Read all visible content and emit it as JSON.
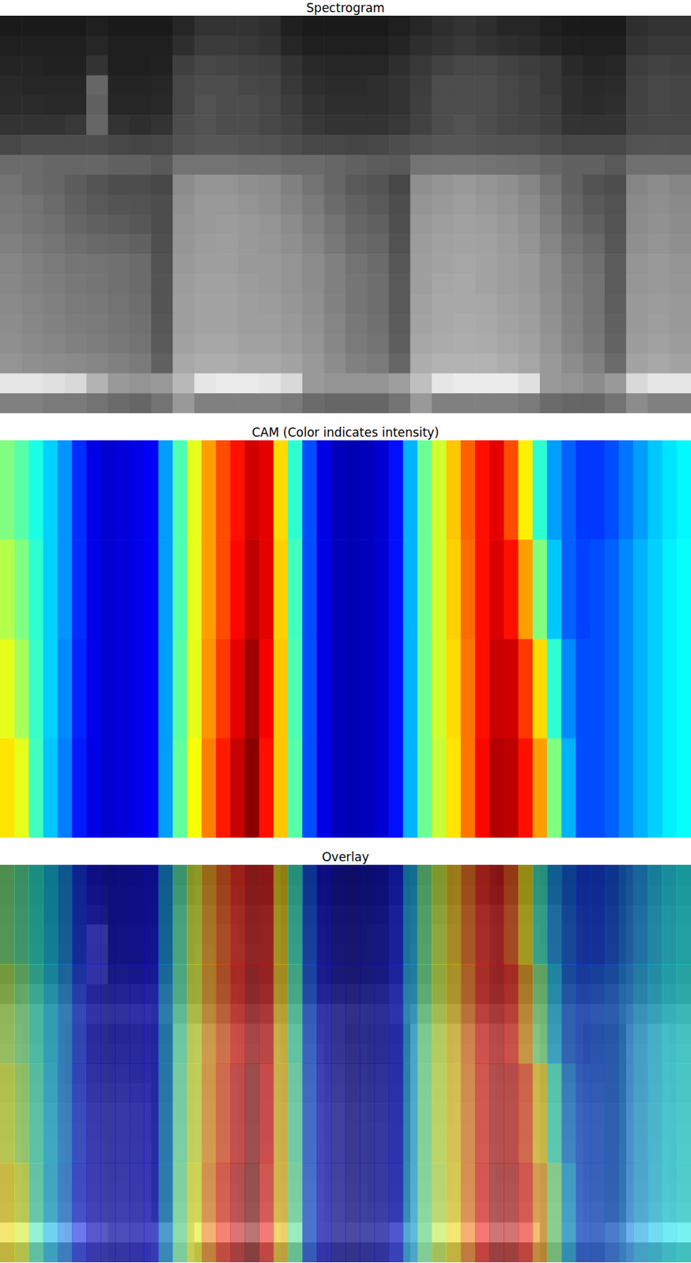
{
  "chart_data": [
    {
      "type": "heatmap",
      "title": "Spectrogram",
      "color": "gray",
      "clim": [
        0,
        1
      ],
      "tick_labels": false,
      "cells": [
        [
          0.1,
          0.1,
          0.1,
          0.1,
          0.12,
          0.1,
          0.1,
          0.1,
          0.15,
          0.2,
          0.2,
          0.2,
          0.18,
          0.12,
          0.1,
          0.1,
          0.1,
          0.1,
          0.12,
          0.15,
          0.18,
          0.2,
          0.18,
          0.15,
          0.15,
          0.12,
          0.1,
          0.1,
          0.1,
          0.18,
          0.2,
          0.2
        ],
        [
          0.12,
          0.12,
          0.12,
          0.12,
          0.15,
          0.12,
          0.12,
          0.12,
          0.18,
          0.23,
          0.23,
          0.22,
          0.2,
          0.15,
          0.12,
          0.12,
          0.12,
          0.12,
          0.14,
          0.18,
          0.2,
          0.22,
          0.2,
          0.18,
          0.17,
          0.14,
          0.12,
          0.12,
          0.12,
          0.2,
          0.22,
          0.22
        ],
        [
          0.14,
          0.14,
          0.13,
          0.13,
          0.2,
          0.12,
          0.12,
          0.13,
          0.25,
          0.28,
          0.27,
          0.26,
          0.25,
          0.2,
          0.16,
          0.15,
          0.15,
          0.15,
          0.18,
          0.22,
          0.26,
          0.28,
          0.28,
          0.26,
          0.24,
          0.22,
          0.16,
          0.14,
          0.15,
          0.24,
          0.26,
          0.25
        ],
        [
          0.16,
          0.15,
          0.15,
          0.15,
          0.4,
          0.14,
          0.14,
          0.15,
          0.28,
          0.3,
          0.3,
          0.28,
          0.27,
          0.22,
          0.18,
          0.17,
          0.17,
          0.18,
          0.2,
          0.24,
          0.3,
          0.3,
          0.3,
          0.28,
          0.26,
          0.22,
          0.18,
          0.16,
          0.17,
          0.26,
          0.28,
          0.27
        ],
        [
          0.17,
          0.17,
          0.16,
          0.16,
          0.38,
          0.15,
          0.15,
          0.16,
          0.28,
          0.32,
          0.3,
          0.3,
          0.28,
          0.24,
          0.2,
          0.18,
          0.18,
          0.18,
          0.2,
          0.25,
          0.3,
          0.3,
          0.3,
          0.28,
          0.26,
          0.24,
          0.18,
          0.17,
          0.18,
          0.26,
          0.28,
          0.27
        ],
        [
          0.2,
          0.2,
          0.2,
          0.22,
          0.4,
          0.2,
          0.18,
          0.2,
          0.3,
          0.32,
          0.3,
          0.3,
          0.28,
          0.26,
          0.22,
          0.2,
          0.2,
          0.2,
          0.22,
          0.26,
          0.3,
          0.32,
          0.3,
          0.28,
          0.27,
          0.25,
          0.2,
          0.2,
          0.2,
          0.27,
          0.28,
          0.28
        ],
        [
          0.28,
          0.3,
          0.3,
          0.3,
          0.3,
          0.28,
          0.27,
          0.28,
          0.32,
          0.34,
          0.34,
          0.33,
          0.32,
          0.3,
          0.28,
          0.28,
          0.27,
          0.28,
          0.3,
          0.32,
          0.34,
          0.34,
          0.33,
          0.32,
          0.32,
          0.3,
          0.28,
          0.28,
          0.28,
          0.32,
          0.33,
          0.32
        ],
        [
          0.42,
          0.42,
          0.4,
          0.4,
          0.4,
          0.38,
          0.38,
          0.35,
          0.45,
          0.45,
          0.45,
          0.44,
          0.44,
          0.42,
          0.42,
          0.4,
          0.38,
          0.36,
          0.35,
          0.45,
          0.46,
          0.46,
          0.45,
          0.44,
          0.43,
          0.4,
          0.38,
          0.38,
          0.35,
          0.44,
          0.44,
          0.44
        ],
        [
          0.45,
          0.42,
          0.4,
          0.36,
          0.33,
          0.3,
          0.3,
          0.28,
          0.55,
          0.58,
          0.58,
          0.56,
          0.55,
          0.5,
          0.45,
          0.4,
          0.35,
          0.33,
          0.28,
          0.56,
          0.58,
          0.6,
          0.58,
          0.56,
          0.52,
          0.45,
          0.38,
          0.32,
          0.3,
          0.52,
          0.55,
          0.52
        ],
        [
          0.47,
          0.45,
          0.42,
          0.38,
          0.35,
          0.33,
          0.32,
          0.3,
          0.57,
          0.6,
          0.6,
          0.58,
          0.56,
          0.52,
          0.48,
          0.42,
          0.38,
          0.35,
          0.3,
          0.58,
          0.6,
          0.62,
          0.6,
          0.58,
          0.55,
          0.48,
          0.4,
          0.35,
          0.32,
          0.54,
          0.56,
          0.54
        ],
        [
          0.48,
          0.46,
          0.44,
          0.4,
          0.38,
          0.36,
          0.34,
          0.3,
          0.58,
          0.6,
          0.61,
          0.6,
          0.58,
          0.55,
          0.5,
          0.45,
          0.4,
          0.38,
          0.31,
          0.6,
          0.62,
          0.63,
          0.62,
          0.6,
          0.57,
          0.5,
          0.42,
          0.38,
          0.33,
          0.55,
          0.57,
          0.55
        ],
        [
          0.5,
          0.48,
          0.46,
          0.43,
          0.41,
          0.4,
          0.38,
          0.31,
          0.59,
          0.61,
          0.62,
          0.6,
          0.59,
          0.56,
          0.52,
          0.47,
          0.42,
          0.4,
          0.32,
          0.61,
          0.63,
          0.64,
          0.63,
          0.61,
          0.58,
          0.52,
          0.45,
          0.41,
          0.34,
          0.56,
          0.58,
          0.56
        ],
        [
          0.52,
          0.5,
          0.48,
          0.46,
          0.45,
          0.44,
          0.42,
          0.32,
          0.6,
          0.62,
          0.62,
          0.6,
          0.6,
          0.58,
          0.55,
          0.5,
          0.45,
          0.42,
          0.34,
          0.62,
          0.64,
          0.65,
          0.64,
          0.62,
          0.6,
          0.55,
          0.48,
          0.44,
          0.36,
          0.58,
          0.6,
          0.58
        ],
        [
          0.53,
          0.51,
          0.49,
          0.47,
          0.46,
          0.44,
          0.42,
          0.33,
          0.61,
          0.63,
          0.63,
          0.61,
          0.6,
          0.58,
          0.55,
          0.5,
          0.46,
          0.43,
          0.35,
          0.62,
          0.65,
          0.66,
          0.64,
          0.62,
          0.6,
          0.55,
          0.49,
          0.45,
          0.36,
          0.59,
          0.6,
          0.59
        ],
        [
          0.54,
          0.52,
          0.5,
          0.48,
          0.47,
          0.45,
          0.43,
          0.33,
          0.62,
          0.64,
          0.64,
          0.62,
          0.61,
          0.59,
          0.56,
          0.51,
          0.46,
          0.43,
          0.35,
          0.63,
          0.66,
          0.66,
          0.65,
          0.63,
          0.61,
          0.56,
          0.5,
          0.45,
          0.37,
          0.6,
          0.61,
          0.6
        ],
        [
          0.55,
          0.53,
          0.51,
          0.49,
          0.48,
          0.46,
          0.44,
          0.34,
          0.62,
          0.64,
          0.64,
          0.62,
          0.62,
          0.6,
          0.57,
          0.52,
          0.47,
          0.44,
          0.36,
          0.64,
          0.66,
          0.67,
          0.66,
          0.64,
          0.62,
          0.57,
          0.51,
          0.46,
          0.38,
          0.6,
          0.62,
          0.6
        ],
        [
          0.56,
          0.54,
          0.52,
          0.5,
          0.49,
          0.47,
          0.45,
          0.35,
          0.63,
          0.65,
          0.65,
          0.63,
          0.63,
          0.61,
          0.58,
          0.53,
          0.48,
          0.45,
          0.37,
          0.65,
          0.67,
          0.68,
          0.67,
          0.65,
          0.63,
          0.58,
          0.52,
          0.47,
          0.39,
          0.61,
          0.63,
          0.61
        ],
        [
          0.58,
          0.56,
          0.55,
          0.54,
          0.52,
          0.5,
          0.48,
          0.38,
          0.66,
          0.68,
          0.68,
          0.66,
          0.66,
          0.64,
          0.6,
          0.55,
          0.5,
          0.48,
          0.4,
          0.68,
          0.7,
          0.7,
          0.7,
          0.68,
          0.65,
          0.6,
          0.55,
          0.5,
          0.42,
          0.64,
          0.66,
          0.64
        ],
        [
          0.9,
          0.9,
          0.88,
          0.85,
          0.7,
          0.6,
          0.58,
          0.6,
          0.72,
          0.9,
          0.92,
          0.92,
          0.9,
          0.85,
          0.6,
          0.58,
          0.58,
          0.58,
          0.62,
          0.75,
          0.9,
          0.92,
          0.92,
          0.92,
          0.88,
          0.6,
          0.58,
          0.55,
          0.6,
          0.85,
          0.9,
          0.9
        ],
        [
          0.5,
          0.5,
          0.48,
          0.48,
          0.45,
          0.42,
          0.4,
          0.45,
          0.6,
          0.5,
          0.5,
          0.5,
          0.5,
          0.48,
          0.42,
          0.4,
          0.4,
          0.4,
          0.45,
          0.6,
          0.5,
          0.5,
          0.5,
          0.5,
          0.48,
          0.42,
          0.4,
          0.4,
          0.45,
          0.55,
          0.5,
          0.5
        ]
      ]
    },
    {
      "type": "heatmap",
      "title": "CAM (Color indicates intensity)",
      "color": "jet",
      "clim": [
        0,
        1
      ],
      "tick_labels": false,
      "cells": [
        [
          0.5,
          0.46,
          0.4,
          0.33,
          0.27,
          0.17,
          0.1,
          0.08,
          0.09,
          0.1,
          0.12,
          0.28,
          0.45,
          0.6,
          0.72,
          0.8,
          0.86,
          0.92,
          0.9,
          0.66,
          0.42,
          0.2,
          0.1,
          0.06,
          0.05,
          0.06,
          0.08,
          0.14,
          0.3,
          0.48,
          0.58,
          0.68,
          0.78,
          0.86,
          0.9,
          0.8,
          0.64,
          0.42,
          0.28,
          0.22,
          0.18,
          0.18,
          0.2,
          0.24,
          0.28,
          0.32,
          0.35,
          0.37
        ],
        [
          0.55,
          0.5,
          0.42,
          0.33,
          0.27,
          0.17,
          0.1,
          0.08,
          0.09,
          0.1,
          0.12,
          0.28,
          0.45,
          0.6,
          0.72,
          0.8,
          0.87,
          0.94,
          0.9,
          0.67,
          0.44,
          0.2,
          0.1,
          0.06,
          0.05,
          0.06,
          0.08,
          0.14,
          0.3,
          0.48,
          0.58,
          0.67,
          0.77,
          0.86,
          0.91,
          0.86,
          0.72,
          0.5,
          0.32,
          0.22,
          0.19,
          0.2,
          0.22,
          0.26,
          0.3,
          0.33,
          0.36,
          0.38
        ],
        [
          0.6,
          0.54,
          0.43,
          0.33,
          0.26,
          0.16,
          0.1,
          0.08,
          0.09,
          0.1,
          0.12,
          0.28,
          0.46,
          0.6,
          0.73,
          0.82,
          0.9,
          0.97,
          0.88,
          0.68,
          0.45,
          0.2,
          0.1,
          0.06,
          0.05,
          0.06,
          0.08,
          0.14,
          0.3,
          0.48,
          0.58,
          0.66,
          0.76,
          0.86,
          0.93,
          0.92,
          0.82,
          0.66,
          0.42,
          0.26,
          0.2,
          0.2,
          0.22,
          0.26,
          0.3,
          0.33,
          0.36,
          0.38
        ],
        [
          0.65,
          0.6,
          0.44,
          0.32,
          0.25,
          0.15,
          0.1,
          0.08,
          0.09,
          0.1,
          0.12,
          0.28,
          0.47,
          0.62,
          0.75,
          0.85,
          0.93,
          0.99,
          0.86,
          0.68,
          0.46,
          0.2,
          0.1,
          0.06,
          0.05,
          0.06,
          0.08,
          0.14,
          0.3,
          0.48,
          0.57,
          0.65,
          0.76,
          0.87,
          0.95,
          0.94,
          0.86,
          0.72,
          0.5,
          0.3,
          0.2,
          0.2,
          0.22,
          0.26,
          0.3,
          0.33,
          0.36,
          0.38
        ]
      ]
    },
    {
      "type": "overlay",
      "title": "Overlay",
      "layers": [
        "Spectrogram",
        "CAM (Color indicates intensity)"
      ],
      "tick_labels": false
    }
  ]
}
